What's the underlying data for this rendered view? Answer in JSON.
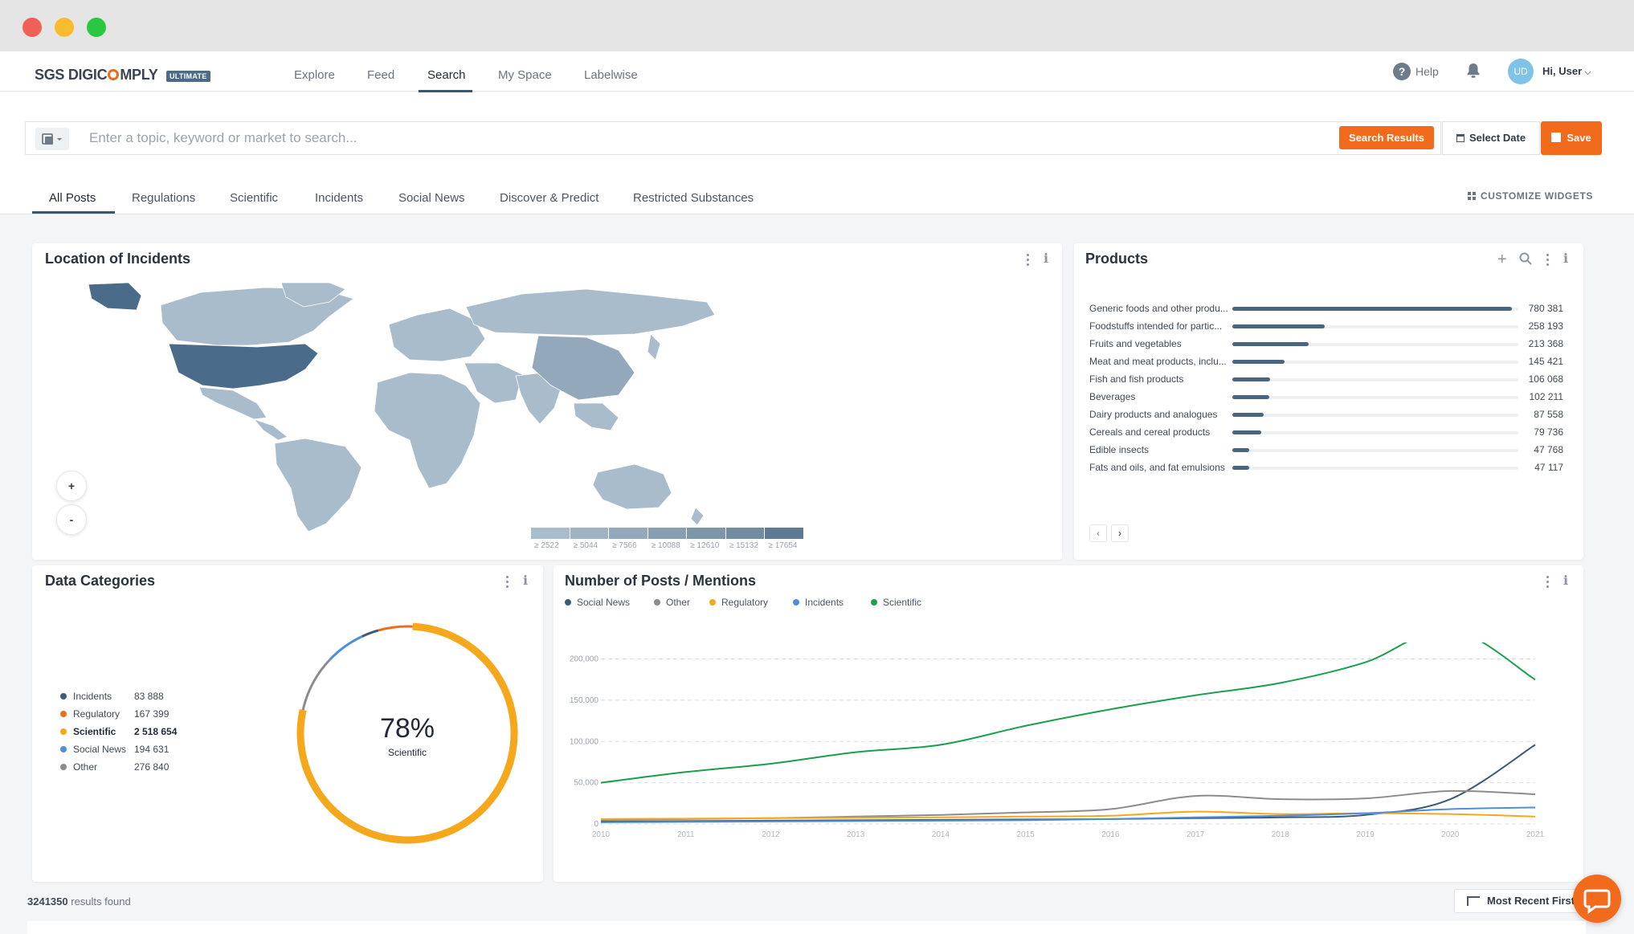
{
  "brand": {
    "name_left": "SGS DIGIC",
    "name_right": "MPLY",
    "badge": "ULTIMATE"
  },
  "nav": {
    "items": [
      "Explore",
      "Feed",
      "Search",
      "My Space",
      "Labelwise"
    ],
    "active": "Search",
    "help": "Help",
    "avatar_initials": "UD",
    "user_label": "Hi, User"
  },
  "search": {
    "placeholder": "Enter a topic, keyword or market to search...",
    "search_results": "Search Results",
    "select_date": "Select Date",
    "save": "Save"
  },
  "tabs": {
    "items": [
      "All Posts",
      "Regulations",
      "Scientific",
      "Incidents",
      "Social News",
      "Discover & Predict",
      "Restricted Substances"
    ],
    "active": "All Posts",
    "customize": "CUSTOMIZE WIDGETS"
  },
  "map_widget": {
    "title": "Location of Incidents",
    "zoom_in": "+",
    "zoom_out": "-",
    "scale_labels": [
      "≥ 2522",
      "≥ 5044",
      "≥ 7566",
      "≥ 10088",
      "≥ 12610",
      "≥ 15132",
      "≥ 17654"
    ],
    "scale_colors": [
      "#a9bccb",
      "#9fb3c3",
      "#93a9bb",
      "#889fb3",
      "#7d96aa",
      "#718ca2",
      "#5d7b94"
    ]
  },
  "products_widget": {
    "title": "Products",
    "items": [
      {
        "label": "Generic foods and other produ...",
        "value": "780 381",
        "num": 780381
      },
      {
        "label": "Foodstuffs intended for partic...",
        "value": "258 193",
        "num": 258193
      },
      {
        "label": "Fruits and vegetables",
        "value": "213 368",
        "num": 213368
      },
      {
        "label": "Meat and meat products, inclu...",
        "value": "145 421",
        "num": 145421
      },
      {
        "label": "Fish and fish products",
        "value": "106 068",
        "num": 106068
      },
      {
        "label": "Beverages",
        "value": "102 211",
        "num": 102211
      },
      {
        "label": "Dairy products and analogues",
        "value": "87 558",
        "num": 87558
      },
      {
        "label": "Cereals and cereal products",
        "value": "79 736",
        "num": 79736
      },
      {
        "label": "Edible insects",
        "value": "47 768",
        "num": 47768
      },
      {
        "label": "Fats and oils, and fat emulsions",
        "value": "47 117",
        "num": 47117
      }
    ],
    "prev": "‹",
    "next": "›"
  },
  "categories_widget": {
    "title": "Data Categories",
    "items": [
      {
        "label": "Incidents",
        "value": "83 888",
        "num": 83888,
        "color": "#3d5a78"
      },
      {
        "label": "Regulatory",
        "value": "167 399",
        "num": 167399,
        "color": "#f26b1d"
      },
      {
        "label": "Scientific",
        "value": "2 518 654",
        "num": 2518654,
        "color": "#f6a81c"
      },
      {
        "label": "Social News",
        "value": "194 631",
        "num": 194631,
        "color": "#4f8fd8"
      },
      {
        "label": "Other",
        "value": "276 840",
        "num": 276840,
        "color": "#8c8c8c"
      }
    ],
    "center_value": "78%",
    "center_label": "Scientific"
  },
  "posts_widget": {
    "title": "Number of Posts / Mentions",
    "chart_data": {
      "type": "line",
      "title": "Number of Posts / Mentions",
      "x": [
        "2010",
        "2011",
        "2012",
        "2013",
        "2014",
        "2015",
        "2016",
        "2017",
        "2018",
        "2019",
        "2020",
        "2021"
      ],
      "y_ticks": [
        "0",
        "50,000",
        "100,000",
        "150,000",
        "200,000"
      ],
      "ylim": [
        0,
        220000
      ],
      "grid": true,
      "legend": "top-left",
      "series": [
        {
          "name": "Social News",
          "color": "#3d5a78",
          "values": [
            3000,
            3500,
            4000,
            4500,
            5000,
            5500,
            6000,
            7000,
            8000,
            11000,
            30000,
            96000
          ]
        },
        {
          "name": "Other",
          "color": "#8c8c8c",
          "values": [
            5000,
            6000,
            7000,
            9000,
            11000,
            14000,
            18000,
            34000,
            30000,
            31000,
            40000,
            36000
          ]
        },
        {
          "name": "Regulatory",
          "color": "#f6a81c",
          "values": [
            6000,
            6500,
            7000,
            7500,
            8000,
            9000,
            10000,
            15000,
            12000,
            13000,
            12000,
            9000
          ]
        },
        {
          "name": "Incidents",
          "color": "#4f8fd8",
          "values": [
            2000,
            2500,
            3000,
            3500,
            4000,
            4500,
            6000,
            8000,
            10000,
            13000,
            18000,
            20000
          ]
        },
        {
          "name": "Scientific",
          "color": "#1aa04a",
          "values": [
            50000,
            63000,
            73000,
            87000,
            96000,
            119000,
            139000,
            156000,
            171000,
            196000,
            236000,
            175000
          ]
        }
      ]
    }
  },
  "footer": {
    "results_count": "3241350",
    "results_suffix": " results found",
    "sort_label": "Most Recent First"
  }
}
